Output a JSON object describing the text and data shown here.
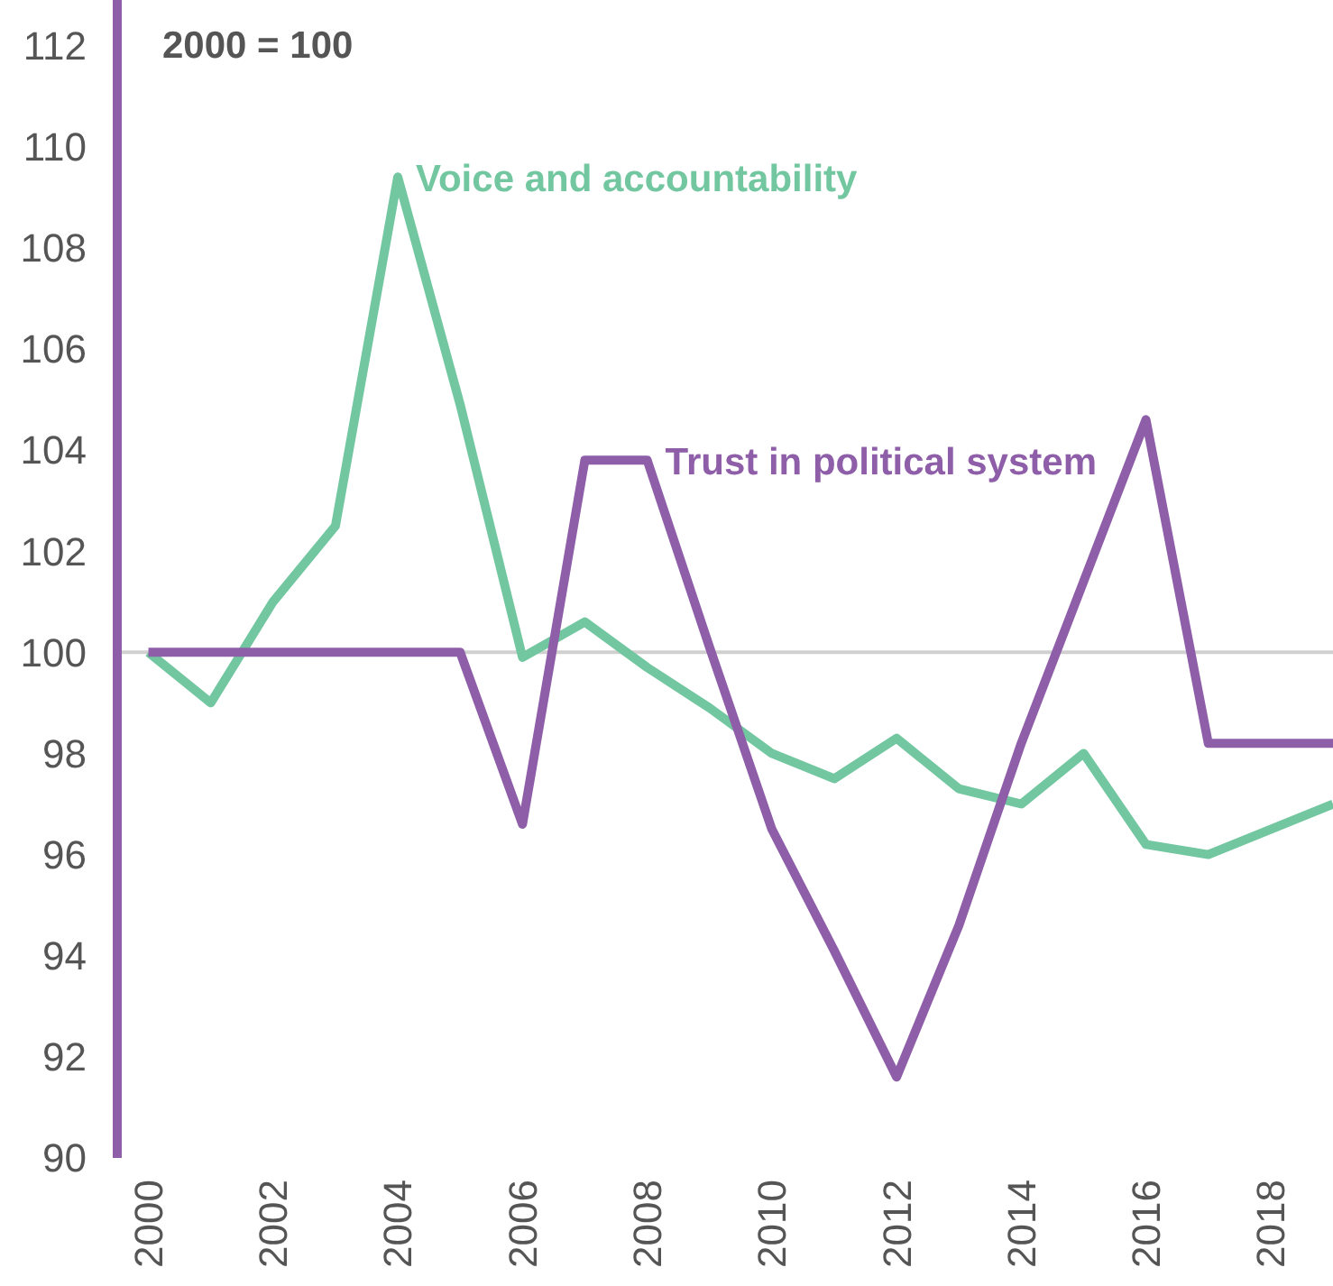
{
  "chart_data": {
    "type": "line",
    "annotations": [
      "2000 = 100"
    ],
    "x": [
      2000,
      2001,
      2002,
      2003,
      2004,
      2005,
      2006,
      2007,
      2008,
      2009,
      2010,
      2011,
      2012,
      2013,
      2014,
      2015,
      2016,
      2017,
      2018,
      2019
    ],
    "series": [
      {
        "name": "Voice and accountability",
        "color": "#72c7a0",
        "values": [
          100,
          99.0,
          101.0,
          102.5,
          109.4,
          104.9,
          99.9,
          100.6,
          99.7,
          98.9,
          98.0,
          97.5,
          98.3,
          97.3,
          97.0,
          98.0,
          96.2,
          96.0,
          96.5,
          97.0
        ]
      },
      {
        "name": "Trust in political system",
        "color": "#8e5ea8",
        "values": [
          100,
          100,
          100,
          100,
          100,
          100,
          96.6,
          103.8,
          103.8,
          100.1,
          96.5,
          94.1,
          91.6,
          94.6,
          98.2,
          101.4,
          104.6,
          98.2,
          98.2,
          98.2
        ]
      }
    ],
    "xlim": [
      1999.5,
      2019
    ],
    "xticks": [
      2000,
      2002,
      2004,
      2006,
      2008,
      2010,
      2012,
      2014,
      2016,
      2018
    ],
    "ylim": [
      90,
      112.9
    ],
    "yticks": [
      90,
      92,
      94,
      96,
      98,
      100,
      102,
      104,
      106,
      108,
      110,
      112
    ],
    "ref_lines": [
      {
        "axis": "y",
        "value": 100,
        "color": "#d0d0d0"
      }
    ],
    "grid": false,
    "marker": "none",
    "line_style": "solid"
  }
}
